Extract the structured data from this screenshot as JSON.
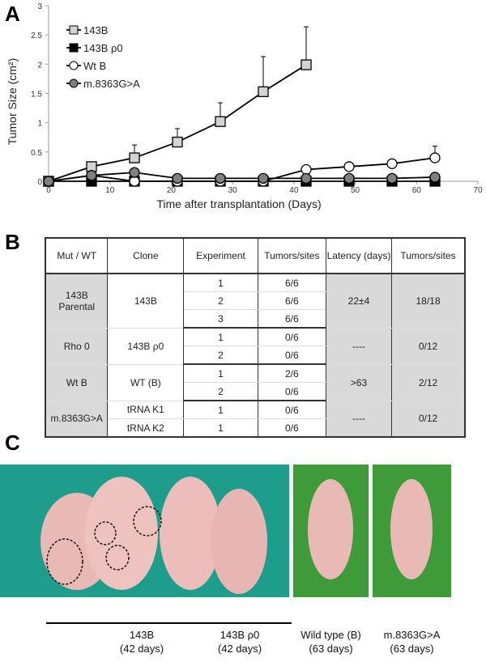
{
  "panels": {
    "a": "A",
    "b": "B",
    "c": "C"
  },
  "chart_data": {
    "type": "line",
    "xlabel": "Time after transplantation (Days)",
    "ylabel": "Tumor Size (cm²)",
    "xlim": [
      0,
      70
    ],
    "ylim": [
      0,
      3
    ],
    "xticks": [
      "0",
      "10",
      "20",
      "30",
      "40",
      "50",
      "60",
      "70"
    ],
    "yticks": [
      "0",
      "0.5",
      "1",
      "1.5",
      "2",
      "2.5",
      "3"
    ],
    "legend_position": "top-left",
    "series": [
      {
        "name": "143B",
        "marker": "square",
        "fill": "#d3d3d3",
        "x": [
          0,
          7,
          14,
          21,
          28,
          35,
          42
        ],
        "y": [
          0,
          0.25,
          0.4,
          0.67,
          1.02,
          1.53,
          1.99
        ],
        "err_upper": [
          null,
          null,
          0.62,
          0.9,
          1.34,
          2.13,
          2.64
        ]
      },
      {
        "name": "143B ρ0",
        "marker": "square",
        "fill": "#000000",
        "x": [
          0,
          7,
          14,
          21,
          28,
          35,
          42,
          49,
          56,
          63
        ],
        "y": [
          0,
          0,
          0,
          0,
          0,
          0,
          0,
          0,
          0,
          0
        ]
      },
      {
        "name": "Wt B",
        "marker": "circle",
        "fill": "#ffffff",
        "x": [
          0,
          7,
          14,
          21,
          28,
          35,
          42,
          49,
          56,
          63
        ],
        "y": [
          0,
          0.1,
          0,
          0,
          0,
          0,
          0.2,
          0.25,
          0.3,
          0.4
        ],
        "err_upper": [
          null,
          null,
          null,
          null,
          null,
          null,
          null,
          null,
          null,
          0.6
        ]
      },
      {
        "name": "m.8363G>A",
        "marker": "circle",
        "fill": "#808080",
        "x": [
          0,
          7,
          14,
          21,
          28,
          35,
          42,
          49,
          56,
          63
        ],
        "y": [
          0,
          0.1,
          0.15,
          0.05,
          0.05,
          0.05,
          0.05,
          0.05,
          0.05,
          0.07
        ]
      }
    ]
  },
  "table": {
    "headers": [
      "Mut / WT",
      "Clone",
      "Experiment",
      "Tumors/sites",
      "Latency (days)",
      "Tumors/sites"
    ],
    "groups": [
      {
        "mut": "143B Parental",
        "clone": [
          "143B"
        ],
        "rows": [
          [
            "1",
            "6/6"
          ],
          [
            "2",
            "6/6"
          ],
          [
            "3",
            "6/6"
          ]
        ],
        "latency": "22±4",
        "total": "18/18"
      },
      {
        "mut": "Rho 0",
        "clone": [
          "143B ρ0"
        ],
        "rows": [
          [
            "1",
            "0/6"
          ],
          [
            "2",
            "0/6"
          ]
        ],
        "latency": "----",
        "total": "0/12"
      },
      {
        "mut": "Wt B",
        "clone": [
          "WT (B)"
        ],
        "rows": [
          [
            "1",
            "2/6"
          ],
          [
            "2",
            "0/6"
          ]
        ],
        "latency": ">63",
        "total": "2/12"
      },
      {
        "mut": "m.8363G>A",
        "clone": [
          "tRNA K1",
          "tRNA K2"
        ],
        "rows": [
          [
            "1",
            "0/6"
          ],
          [
            "1",
            "0/6"
          ]
        ],
        "latency": "----",
        "total": "0/12"
      }
    ]
  },
  "photos": {
    "captions": [
      {
        "label": "143B",
        "days": "(42 days)"
      },
      {
        "label": "143B ρ0",
        "days": "(42 days)"
      },
      {
        "label": "Wild type (B)",
        "days": "(63 days)"
      },
      {
        "label": "m.8363G>A",
        "days": "(63 days)"
      }
    ],
    "colors": {
      "teal": "#1e9c8c",
      "green": "#3f9a3a",
      "skin": "#e9b9b6"
    }
  }
}
